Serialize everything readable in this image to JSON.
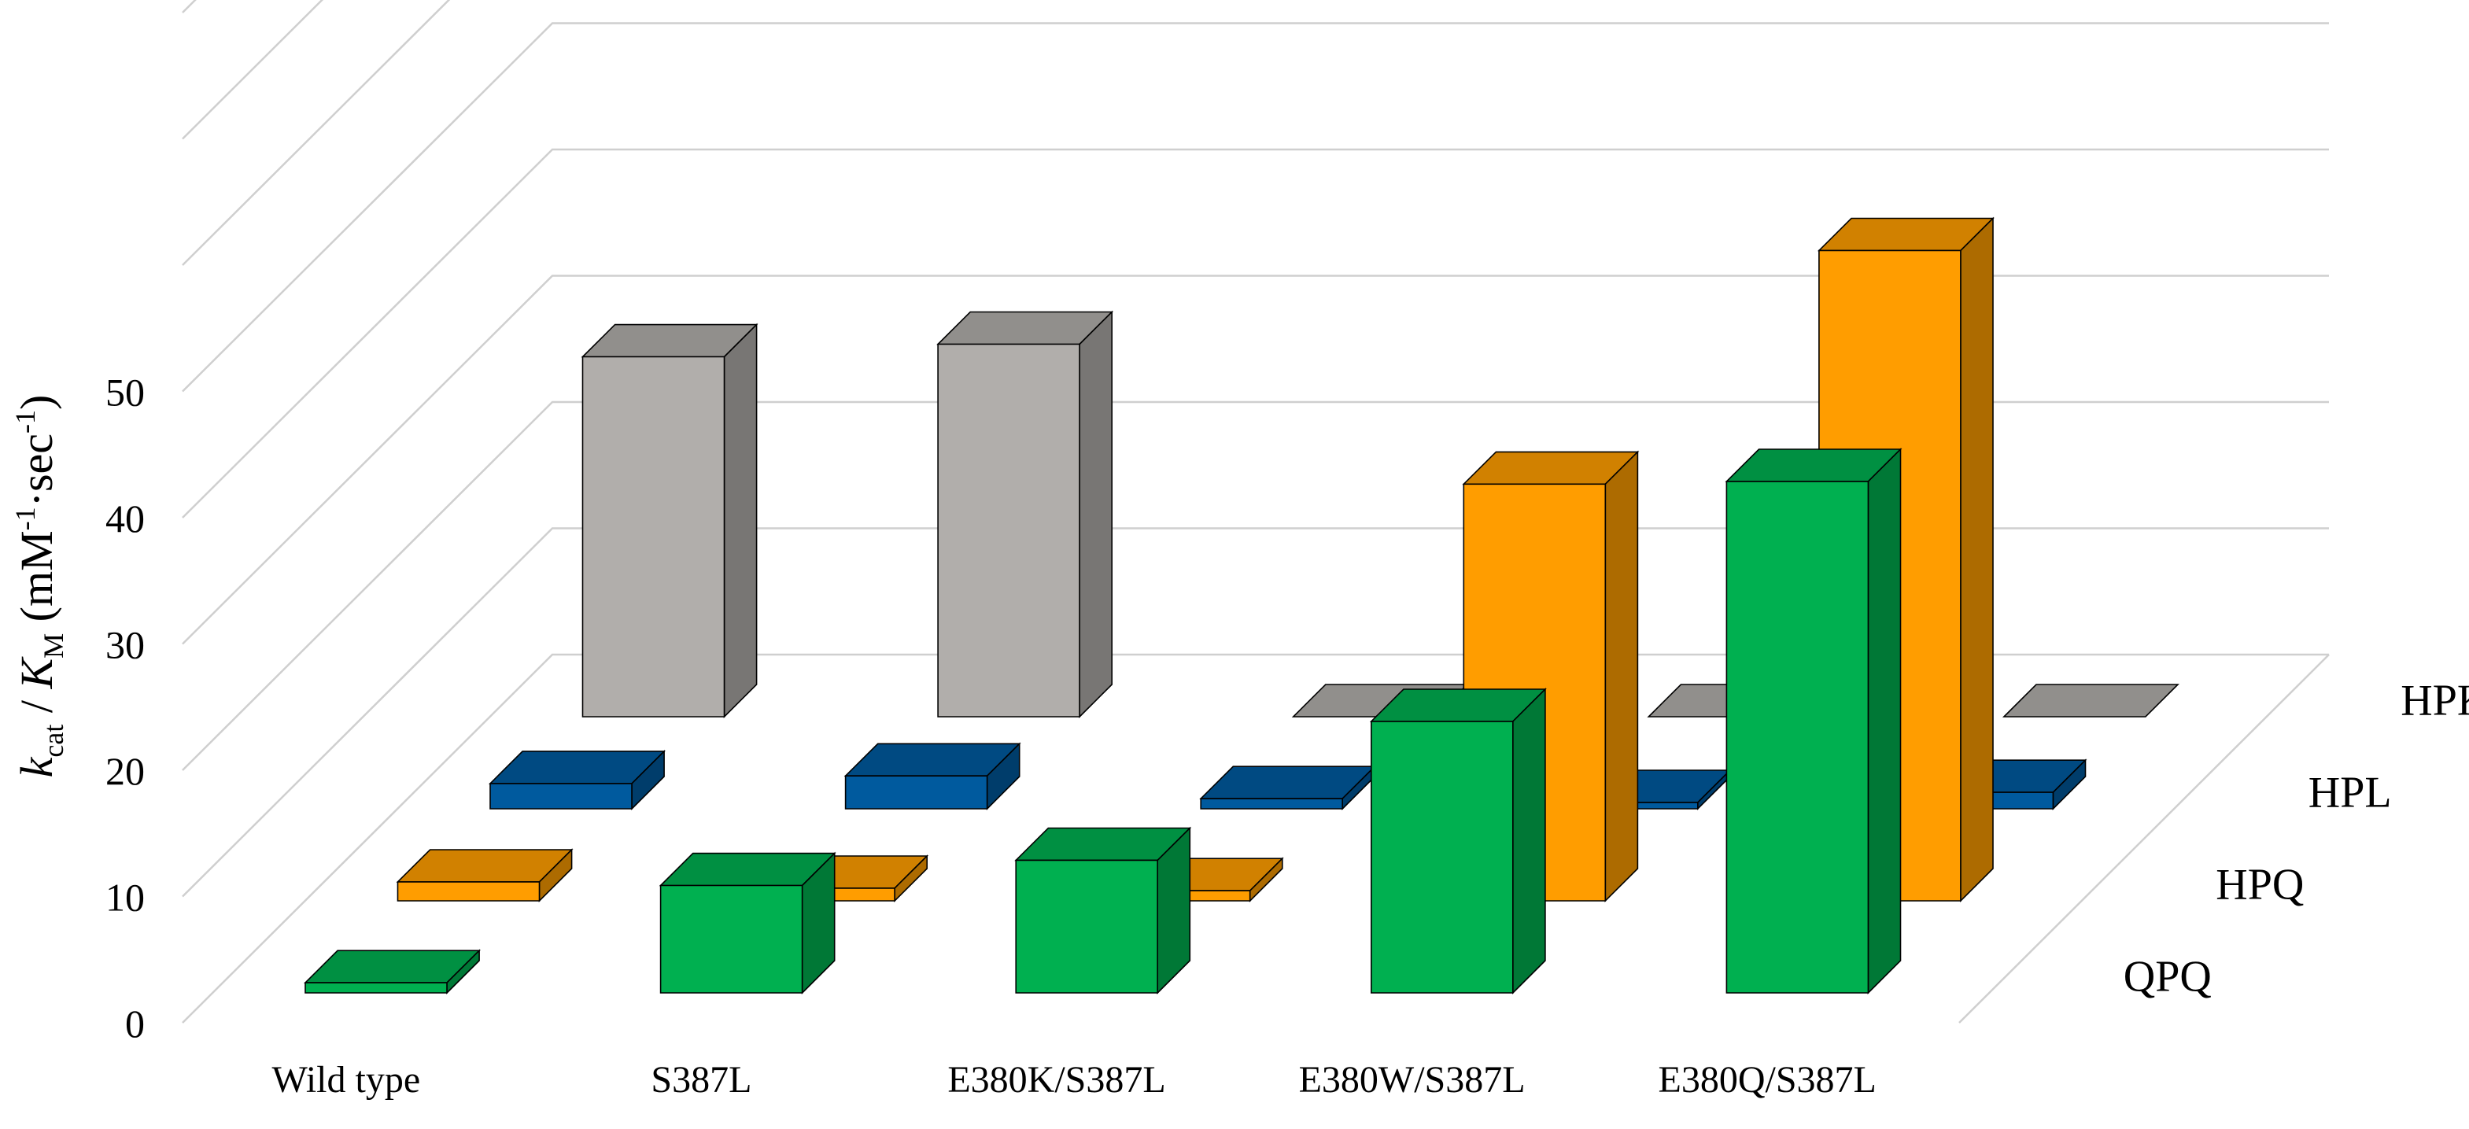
{
  "chart_data": {
    "type": "bar",
    "categories": [
      "Wild type",
      "S387L",
      "E380K/S387L",
      "E380W/S387L",
      "E380Q/S387L"
    ],
    "series": [
      {
        "name": "QPQ",
        "values": [
          0.8,
          8.5,
          10.5,
          21.5,
          40.5
        ],
        "color": "#00b050"
      },
      {
        "name": "HPQ",
        "values": [
          1.5,
          1.0,
          0.8,
          33.0,
          51.5
        ],
        "color": "#ff9d00"
      },
      {
        "name": "HPL",
        "values": [
          2.0,
          2.6,
          0.8,
          0.5,
          1.3
        ],
        "color": "#005a9e"
      },
      {
        "name": "HPK",
        "values": [
          28.5,
          29.5,
          0.0,
          0.0,
          0.0
        ],
        "color": "#b1aeab"
      }
    ],
    "ylabel": {
      "k": "k",
      "cat": "cat",
      "slash": " / ",
      "K": "K",
      "M": "M",
      "units_open": " (mM",
      "exp1": "-1",
      "mid": "·sec",
      "exp2": "-1",
      "units_close": ")"
    },
    "y_ticks": [
      0,
      10,
      20,
      30,
      40,
      50
    ],
    "ylim": [
      0,
      80
    ],
    "grid": true,
    "legend": "depth axis labels (right)"
  }
}
